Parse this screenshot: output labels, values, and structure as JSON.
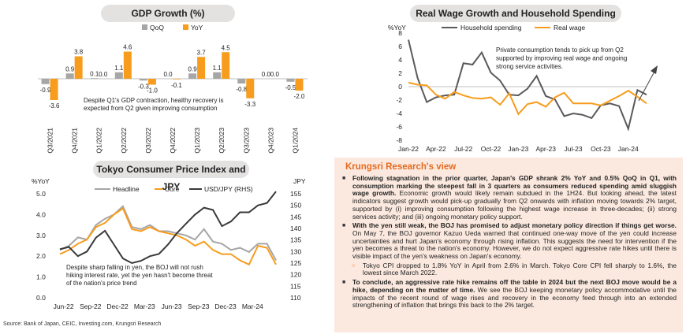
{
  "gdp": {
    "title": "GDP Growth (%)",
    "chart_data": {
      "type": "bar",
      "categories": [
        "Q3/2021",
        "Q4/2021",
        "Q1/2022",
        "Q2/2022",
        "Q3/2022",
        "Q4/2022",
        "Q1/2023",
        "Q2/2023",
        "Q3/2023",
        "Q4/2023",
        "Q1/2024"
      ],
      "series": [
        {
          "name": "QoQ",
          "color": "#a6a6a6",
          "values": [
            -0.9,
            0.9,
            0.1,
            1.1,
            -0.3,
            0.0,
            0.9,
            1.1,
            -0.8,
            0.0,
            -0.5
          ]
        },
        {
          "name": "YoY",
          "color": "#f79c1c",
          "values": [
            -3.6,
            3.8,
            0.0,
            4.6,
            -1.0,
            -0.1,
            3.7,
            4.5,
            -3.3,
            0.0,
            -2.0
          ]
        }
      ],
      "annotation": "Despite Q1's GDP contraction, healthy recovery is expected from Q2 given improving consumption"
    }
  },
  "wage": {
    "title": "Real Wage Growth and Household Spending",
    "chart_data": {
      "type": "line",
      "ylabel": "%YoY",
      "ylim": [
        -8,
        8
      ],
      "yticks": [
        8,
        6,
        4,
        2,
        0,
        -2,
        -4,
        -6,
        -8
      ],
      "xticklabels": [
        "Jan-22",
        "Apr-22",
        "Jul-22",
        "Oct-22",
        "Jan-23",
        "Apr-23",
        "Jul-23",
        "Oct-23",
        "Jan-24"
      ],
      "series": [
        {
          "name": "Household spending",
          "color": "#5a5a5a",
          "values": [
            7.0,
            1.3,
            -2.3,
            -1.6,
            -1.3,
            -1.2,
            3.5,
            3.3,
            5.1,
            2.1,
            0.9,
            -1.2,
            -1.3,
            -0.3,
            1.6,
            -1.4,
            -1.9,
            -4.4,
            -4.0,
            -4.2,
            -4.7,
            -2.8,
            -2.5,
            -2.9,
            -6.3,
            -0.5,
            -1.2
          ]
        },
        {
          "name": "Real wage",
          "color": "#f79c1c",
          "values": [
            0.6,
            0.3,
            0.2,
            -1.2,
            -1.8,
            -0.8,
            -1.3,
            -1.7,
            -1.8,
            -1.6,
            -2.7,
            -1.0,
            -4.1,
            -2.6,
            -2.3,
            -3.0,
            -1.6,
            -0.9,
            -2.5,
            -2.5,
            -2.5,
            -2.8,
            -2.1,
            -1.4,
            -0.6,
            -1.5,
            -2.5
          ]
        }
      ],
      "annotation": "Private consumption tends to pick up from Q2 supported by improving real wage and ongoing strong service activities."
    }
  },
  "cpi": {
    "title": "Tokyo Consumer Price Index and JPY",
    "chart_data": {
      "type": "line",
      "ylabel_left": "%YoY",
      "ylabel_right": "JPY",
      "ylim_left": [
        0.0,
        5.0
      ],
      "ylim_right": [
        110,
        155
      ],
      "yticks_left": [
        "5.0",
        "4.0",
        "3.0",
        "2.0",
        "1.0",
        "0.0"
      ],
      "yticks_right": [
        "155",
        "150",
        "145",
        "140",
        "135",
        "130",
        "125",
        "120",
        "115",
        "110"
      ],
      "xticklabels": [
        "Jun-22",
        "Sep-22",
        "Dec-22",
        "Mar-23",
        "Jun-23",
        "Sep-23",
        "Dec-23",
        "Mar-24"
      ],
      "series": [
        {
          "name": "Headline",
          "axis": "left",
          "color": "#a6a6a6",
          "values": [
            2.3,
            2.5,
            2.9,
            2.8,
            3.5,
            3.8,
            4.0,
            4.4,
            3.4,
            3.3,
            3.5,
            3.2,
            3.2,
            3.1,
            3.0,
            2.8,
            3.3,
            2.7,
            2.6,
            2.3,
            2.4,
            2.2,
            2.6,
            2.6,
            1.8
          ]
        },
        {
          "name": "Core",
          "axis": "left",
          "color": "#f79c1c",
          "values": [
            2.1,
            2.3,
            2.6,
            2.8,
            3.4,
            3.6,
            4.0,
            4.3,
            3.3,
            3.2,
            3.4,
            3.2,
            3.1,
            3.0,
            2.8,
            2.5,
            2.7,
            2.3,
            2.1,
            2.1,
            1.8,
            1.6,
            2.5,
            2.4,
            1.6
          ]
        },
        {
          "name": "USD/JPY (RHS)",
          "axis": "right",
          "color": "#3a3a3a",
          "values": [
            131,
            132,
            128,
            130,
            136,
            139,
            133,
            127,
            125,
            126,
            128,
            129,
            133,
            138,
            142,
            146,
            149,
            148,
            141,
            143,
            147,
            147,
            150,
            151,
            156
          ]
        }
      ],
      "annotation": "Despite sharp falling in yen, the BOJ will not rush hiking interest rate, yet the yen hasn't become threat of the nation's price trend"
    }
  },
  "view": {
    "title": "Krungsri Research's view",
    "items": [
      {
        "bold": "Following stagnation in the prior quarter, Japan's GDP shrank 2% YoY and 0.5% QoQ in Q1, with consumption marking the steepest fall in 3 quarters as consumers reduced spending amid sluggish wage growth.",
        "text": " Economic growth would likely remain subdued in the 1H24. But looking ahead, the latest indicators suggest growth would pick-up gradually from Q2 onwards with inflation moving towards 2% target, supported by (i) improving consumption following the highest wage increase in three-decades; (ii) strong services activity; and (iii) ongoing monetary policy support."
      },
      {
        "bold": "With the yen still weak, the BOJ has promised to adjust monetary policy direction if things get worse.",
        "text": " On May 7, the BOJ governor Kazuo Ueda warned that continued one-way move of the yen could increase uncertainties and hurt Japan's economy through rising inflation. This suggests the need for intervention if the yen becomes a threat to the nation's economy. However, we do not expect aggressive rate hikes until there is visible impact of the yen's weakness on Japan's economy."
      },
      {
        "bold": "",
        "text": "Tokyo CPI dropped to 1.8% YoY in April from 2.6% in March. Tokyo Core CPI fell sharply to 1.6%, the lowest since March 2022."
      },
      {
        "bold": "To conclude, an aggressive rate hike remains off the table in 2024 but the next BOJ move would be a hike, depending on the matter of time.",
        "text": " We see the BOJ keeping monetary policy accommodative until the impacts of the recent round of wage rises and recovery in the economy feed through into an extended strengthening of inflation that brings this back to the 2% target."
      }
    ]
  },
  "source": "Source: Bank of Japan, CEIC, Investing.com, Krungsri Research"
}
